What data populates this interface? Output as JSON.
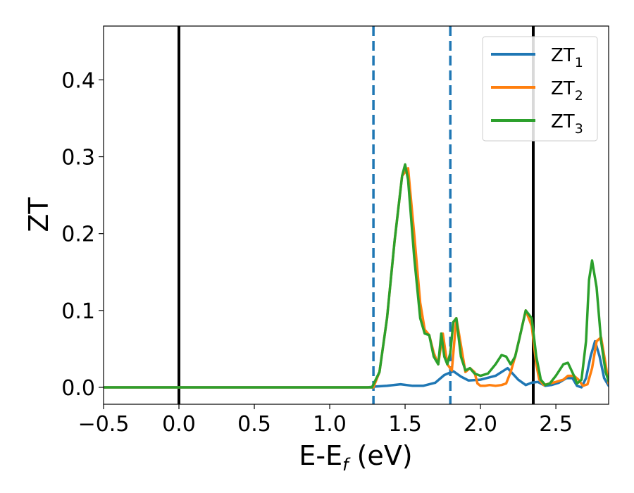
{
  "chart_data": {
    "type": "line",
    "xlabel": "E-E",
    "xlabel_sub": "f",
    "xlabel_unit": " (eV)",
    "ylabel": "ZT",
    "xlim": [
      -0.5,
      2.85
    ],
    "ylim": [
      -0.022,
      0.47
    ],
    "xticks": [
      -0.5,
      0.0,
      0.5,
      1.0,
      1.5,
      2.0,
      2.5
    ],
    "xtick_labels": [
      "−0.5",
      "0.0",
      "0.5",
      "1.0",
      "1.5",
      "2.0",
      "2.5"
    ],
    "yticks": [
      0.0,
      0.1,
      0.2,
      0.3,
      0.4
    ],
    "ytick_labels": [
      "0.0",
      "0.1",
      "0.2",
      "0.3",
      "0.4"
    ],
    "grid": false,
    "legend_position": "top-right",
    "vlines": [
      {
        "x": 0.0,
        "style": "solid",
        "color": "#000000"
      },
      {
        "x": 2.35,
        "style": "solid",
        "color": "#000000"
      },
      {
        "x": 1.29,
        "style": "dashed",
        "color": "#1f77b4"
      },
      {
        "x": 1.8,
        "style": "dashed",
        "color": "#1f77b4"
      }
    ],
    "series": [
      {
        "name": "ZT",
        "sub": "1",
        "color": "#1f77b4",
        "x": [
          -0.5,
          1.25,
          1.3,
          1.38,
          1.47,
          1.55,
          1.62,
          1.7,
          1.76,
          1.82,
          1.87,
          1.92,
          2.0,
          2.1,
          2.18,
          2.25,
          2.3,
          2.34,
          2.38,
          2.43,
          2.47,
          2.52,
          2.57,
          2.61,
          2.64,
          2.67,
          2.7,
          2.73,
          2.76,
          2.79,
          2.82,
          2.85
        ],
        "y": [
          0.0,
          0.0,
          0.001,
          0.002,
          0.004,
          0.002,
          0.002,
          0.006,
          0.016,
          0.021,
          0.014,
          0.009,
          0.01,
          0.015,
          0.025,
          0.01,
          0.003,
          0.006,
          0.007,
          0.002,
          0.003,
          0.006,
          0.012,
          0.012,
          0.002,
          0.0,
          0.012,
          0.04,
          0.06,
          0.04,
          0.012,
          0.002
        ]
      },
      {
        "name": "ZT",
        "sub": "2",
        "color": "#ff7f0e",
        "x": [
          -0.5,
          1.29,
          1.33,
          1.38,
          1.43,
          1.48,
          1.52,
          1.56,
          1.6,
          1.63,
          1.66,
          1.69,
          1.72,
          1.75,
          1.78,
          1.81,
          1.84,
          1.87,
          1.9,
          1.93,
          1.96,
          1.98,
          2.0,
          2.03,
          2.06,
          2.1,
          2.14,
          2.17,
          2.2,
          2.23,
          2.26,
          2.3,
          2.34,
          2.37,
          2.39,
          2.42,
          2.46,
          2.5,
          2.55,
          2.58,
          2.62,
          2.65,
          2.68,
          2.71,
          2.74,
          2.77,
          2.8,
          2.83,
          2.85
        ],
        "y": [
          0.0,
          0.0,
          0.02,
          0.09,
          0.19,
          0.275,
          0.285,
          0.2,
          0.11,
          0.075,
          0.068,
          0.045,
          0.03,
          0.07,
          0.03,
          0.022,
          0.09,
          0.055,
          0.02,
          0.025,
          0.02,
          0.005,
          0.002,
          0.002,
          0.003,
          0.002,
          0.003,
          0.005,
          0.02,
          0.04,
          0.065,
          0.1,
          0.08,
          0.03,
          0.01,
          0.003,
          0.005,
          0.007,
          0.01,
          0.015,
          0.015,
          0.01,
          0.002,
          0.004,
          0.025,
          0.06,
          0.065,
          0.03,
          0.005
        ]
      },
      {
        "name": "ZT",
        "sub": "3",
        "color": "#2ca02c",
        "x": [
          -0.5,
          1.28,
          1.33,
          1.38,
          1.43,
          1.48,
          1.5,
          1.52,
          1.56,
          1.6,
          1.63,
          1.66,
          1.69,
          1.72,
          1.74,
          1.76,
          1.78,
          1.8,
          1.82,
          1.84,
          1.87,
          1.9,
          1.93,
          1.96,
          2.0,
          2.05,
          2.1,
          2.14,
          2.17,
          2.2,
          2.23,
          2.26,
          2.3,
          2.34,
          2.37,
          2.4,
          2.43,
          2.46,
          2.5,
          2.55,
          2.58,
          2.62,
          2.64,
          2.67,
          2.7,
          2.72,
          2.74,
          2.77,
          2.8,
          2.83,
          2.85
        ],
        "y": [
          0.0,
          0.0,
          0.02,
          0.09,
          0.19,
          0.275,
          0.29,
          0.27,
          0.17,
          0.09,
          0.07,
          0.068,
          0.04,
          0.03,
          0.07,
          0.04,
          0.03,
          0.045,
          0.085,
          0.09,
          0.04,
          0.022,
          0.025,
          0.018,
          0.015,
          0.018,
          0.03,
          0.042,
          0.04,
          0.03,
          0.04,
          0.065,
          0.1,
          0.09,
          0.04,
          0.01,
          0.003,
          0.005,
          0.015,
          0.03,
          0.032,
          0.015,
          0.005,
          0.01,
          0.06,
          0.14,
          0.165,
          0.13,
          0.06,
          0.02,
          0.008
        ]
      }
    ]
  }
}
